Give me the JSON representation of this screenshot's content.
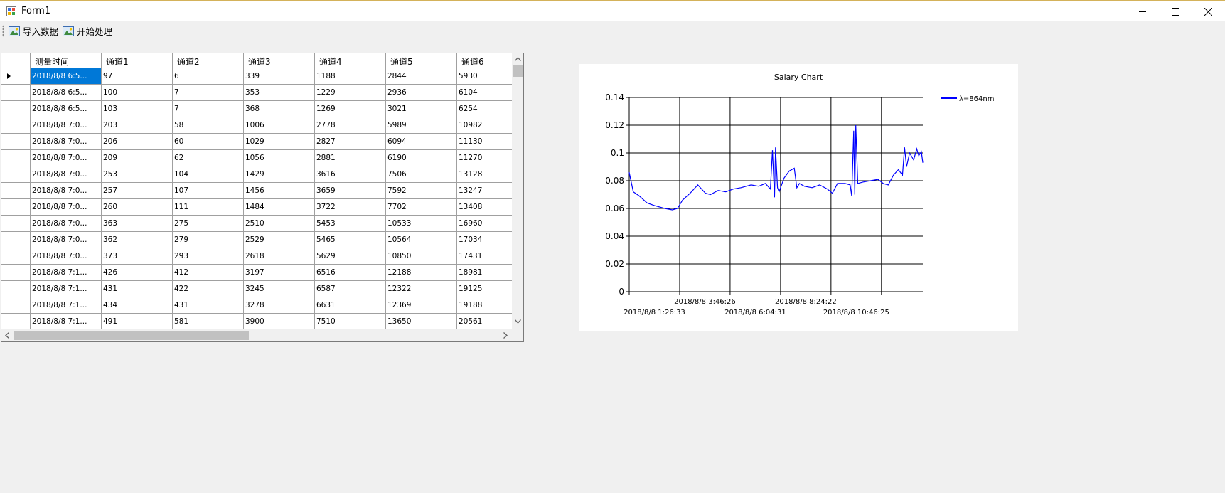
{
  "window": {
    "title": "Form1",
    "minimize_icon": "minimize-icon",
    "maximize_icon": "maximize-icon",
    "close_icon": "close-icon"
  },
  "toolbar": {
    "import_label": "导入数据",
    "process_label": "开始处理",
    "import_icon": "picture-icon",
    "process_icon": "picture-icon"
  },
  "grid": {
    "columns": [
      "测量时间",
      "通道1",
      "通道2",
      "通道3",
      "通道4",
      "通道5",
      "通道6"
    ],
    "selected_row": 0,
    "rows": [
      [
        "2018/8/8 6:5...",
        "97",
        "6",
        "339",
        "1188",
        "2844",
        "5930"
      ],
      [
        "2018/8/8 6:5...",
        "100",
        "7",
        "353",
        "1229",
        "2936",
        "6104"
      ],
      [
        "2018/8/8 6:5...",
        "103",
        "7",
        "368",
        "1269",
        "3021",
        "6254"
      ],
      [
        "2018/8/8 7:0...",
        "203",
        "58",
        "1006",
        "2778",
        "5989",
        "10982"
      ],
      [
        "2018/8/8 7:0...",
        "206",
        "60",
        "1029",
        "2827",
        "6094",
        "11130"
      ],
      [
        "2018/8/8 7:0...",
        "209",
        "62",
        "1056",
        "2881",
        "6190",
        "11270"
      ],
      [
        "2018/8/8 7:0...",
        "253",
        "104",
        "1429",
        "3616",
        "7506",
        "13128"
      ],
      [
        "2018/8/8 7:0...",
        "257",
        "107",
        "1456",
        "3659",
        "7592",
        "13247"
      ],
      [
        "2018/8/8 7:0...",
        "260",
        "111",
        "1484",
        "3722",
        "7702",
        "13408"
      ],
      [
        "2018/8/8 7:0...",
        "363",
        "275",
        "2510",
        "5453",
        "10533",
        "16960"
      ],
      [
        "2018/8/8 7:0...",
        "362",
        "279",
        "2529",
        "5465",
        "10564",
        "17034"
      ],
      [
        "2018/8/8 7:0...",
        "373",
        "293",
        "2618",
        "5629",
        "10850",
        "17431"
      ],
      [
        "2018/8/8 7:1...",
        "426",
        "412",
        "3197",
        "6516",
        "12188",
        "18981"
      ],
      [
        "2018/8/8 7:1...",
        "431",
        "422",
        "3245",
        "6587",
        "12322",
        "19125"
      ],
      [
        "2018/8/8 7:1...",
        "434",
        "431",
        "3278",
        "6631",
        "12369",
        "19188"
      ],
      [
        "2018/8/8 7:1...",
        "491",
        "581",
        "3900",
        "7510",
        "13650",
        "20561"
      ]
    ]
  },
  "chart_data": {
    "type": "line",
    "title": "Salary Chart",
    "xlabel": "",
    "ylabel": "",
    "ylim": [
      0,
      0.14
    ],
    "yticks": [
      "0",
      "0.02",
      "0.04",
      "0.06",
      "0.08",
      "0.1",
      "0.12",
      "0.14"
    ],
    "xlim_hours": [
      0,
      5.78
    ],
    "xtick_labels_bottom": [
      "2018/8/8 1:26:33",
      "2018/8/8 6:04:31",
      "2018/8/8 10:46:25"
    ],
    "xtick_labels_top": [
      "2018/8/8 3:46:26",
      "2018/8/8 8:24:22"
    ],
    "grid": true,
    "legend_position": "top-right",
    "series": [
      {
        "name": "λ=864nm",
        "color": "#0000ff",
        "x": [
          0,
          0.08,
          0.2,
          0.35,
          0.5,
          0.7,
          0.85,
          0.95,
          1.05,
          1.2,
          1.35,
          1.5,
          1.6,
          1.75,
          1.9,
          2.05,
          2.2,
          2.4,
          2.55,
          2.68,
          2.78,
          2.82,
          2.86,
          2.88,
          2.92,
          2.95,
          3.05,
          3.15,
          3.25,
          3.3,
          3.35,
          3.45,
          3.6,
          3.75,
          3.9,
          4.0,
          4.1,
          4.25,
          4.35,
          4.38,
          4.42,
          4.44,
          4.46,
          4.5,
          4.6,
          4.75,
          4.9,
          5.0,
          5.1,
          5.2,
          5.3,
          5.38,
          5.42,
          5.46,
          5.52,
          5.6,
          5.66,
          5.7,
          5.75,
          5.78
        ],
        "y": [
          0.086,
          0.072,
          0.069,
          0.064,
          0.062,
          0.06,
          0.059,
          0.06,
          0.066,
          0.071,
          0.077,
          0.071,
          0.07,
          0.073,
          0.072,
          0.074,
          0.075,
          0.077,
          0.076,
          0.078,
          0.074,
          0.102,
          0.068,
          0.104,
          0.075,
          0.072,
          0.082,
          0.087,
          0.089,
          0.075,
          0.078,
          0.076,
          0.075,
          0.077,
          0.074,
          0.071,
          0.078,
          0.078,
          0.077,
          0.069,
          0.116,
          0.07,
          0.12,
          0.078,
          0.079,
          0.08,
          0.081,
          0.078,
          0.077,
          0.084,
          0.088,
          0.084,
          0.104,
          0.09,
          0.1,
          0.095,
          0.103,
          0.098,
          0.101,
          0.093
        ]
      }
    ]
  }
}
